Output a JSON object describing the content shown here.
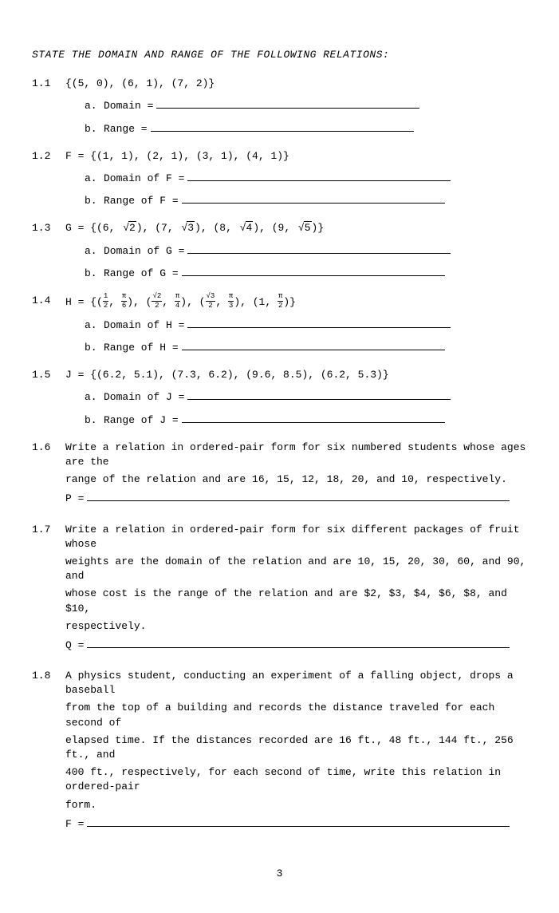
{
  "header": "STATE THE DOMAIN AND RANGE OF THE FOLLOWING RELATIONS:",
  "p11": {
    "num": "1.1",
    "set": "{(5, 0), (6, 1), (7, 2)}",
    "a_lead": "a.",
    "a_text": "Domain =",
    "b_lead": "b.",
    "b_text": "Range  ="
  },
  "p12": {
    "num": "1.2",
    "set": "F = {(1, 1), (2, 1), (3, 1), (4, 1)}",
    "a_lead": "a.",
    "a_text": "Domain of F =",
    "b_lead": "b.",
    "b_text": "Range of F  ="
  },
  "p13": {
    "num": "1.3",
    "pre": "G = {(6, ",
    "r1": "2",
    "m1": "), (7, ",
    "r2": "3",
    "m2": "), (8, ",
    "r3": "4",
    "m3": "), (9, ",
    "r4": "5",
    "post": ")}",
    "a_lead": "a.",
    "a_text": "Domain of G =",
    "b_lead": "b.",
    "b_text": "Range of G  ="
  },
  "p14": {
    "num": "1.4",
    "pre": "H = {(",
    "n1": "1",
    "d1": "2",
    "c1": ", ",
    "n2": "π",
    "d2": "6",
    "m1": "), (",
    "n3": "√2",
    "d3": "2",
    "c2": ", ",
    "n4": "π",
    "d4": "4",
    "m2": "), (",
    "n5": "√3",
    "d5": "2",
    "c3": ", ",
    "n6": "π",
    "d6": "3",
    "m3": "), (1, ",
    "n7": "π",
    "d7": "2",
    "post": ")}",
    "a_lead": "a.",
    "a_text": "Domain of H =",
    "b_lead": "b.",
    "b_text": "Range of H  ="
  },
  "p15": {
    "num": "1.5",
    "set": "J = {(6.2, 5.1), (7.3, 6.2), (9.6, 8.5), (6.2, 5.3)}",
    "a_lead": "a.",
    "a_text": "Domain of J =",
    "b_lead": "b.",
    "b_text": "Range of J  ="
  },
  "p16": {
    "num": "1.6",
    "l1": "Write a relation in ordered-pair form for six numbered students whose ages are the",
    "l2": "range of the relation and are 16, 15, 12, 18, 20, and 10, respectively.",
    "ans": "P ="
  },
  "p17": {
    "num": "1.7",
    "l1": "Write a relation in ordered-pair form for six different packages of fruit whose",
    "l2": "weights are the domain of the relation and are 10, 15, 20, 30, 60, and 90, and",
    "l3": "whose cost is the range of the relation and are $2, $3, $4, $6, $8, and $10,",
    "l4": "respectively.",
    "ans": "Q ="
  },
  "p18": {
    "num": "1.8",
    "l1": "A physics student, conducting an experiment of a falling object, drops a baseball",
    "l2": "from the top of a building and records the distance traveled for each second of",
    "l3": "elapsed time.  If the distances recorded are 16 ft., 48 ft., 144 ft., 256 ft., and",
    "l4": "400 ft., respectively, for each second of time, write this relation in ordered-pair",
    "l5": "form.",
    "ans": "F ="
  },
  "pagenum": "3"
}
